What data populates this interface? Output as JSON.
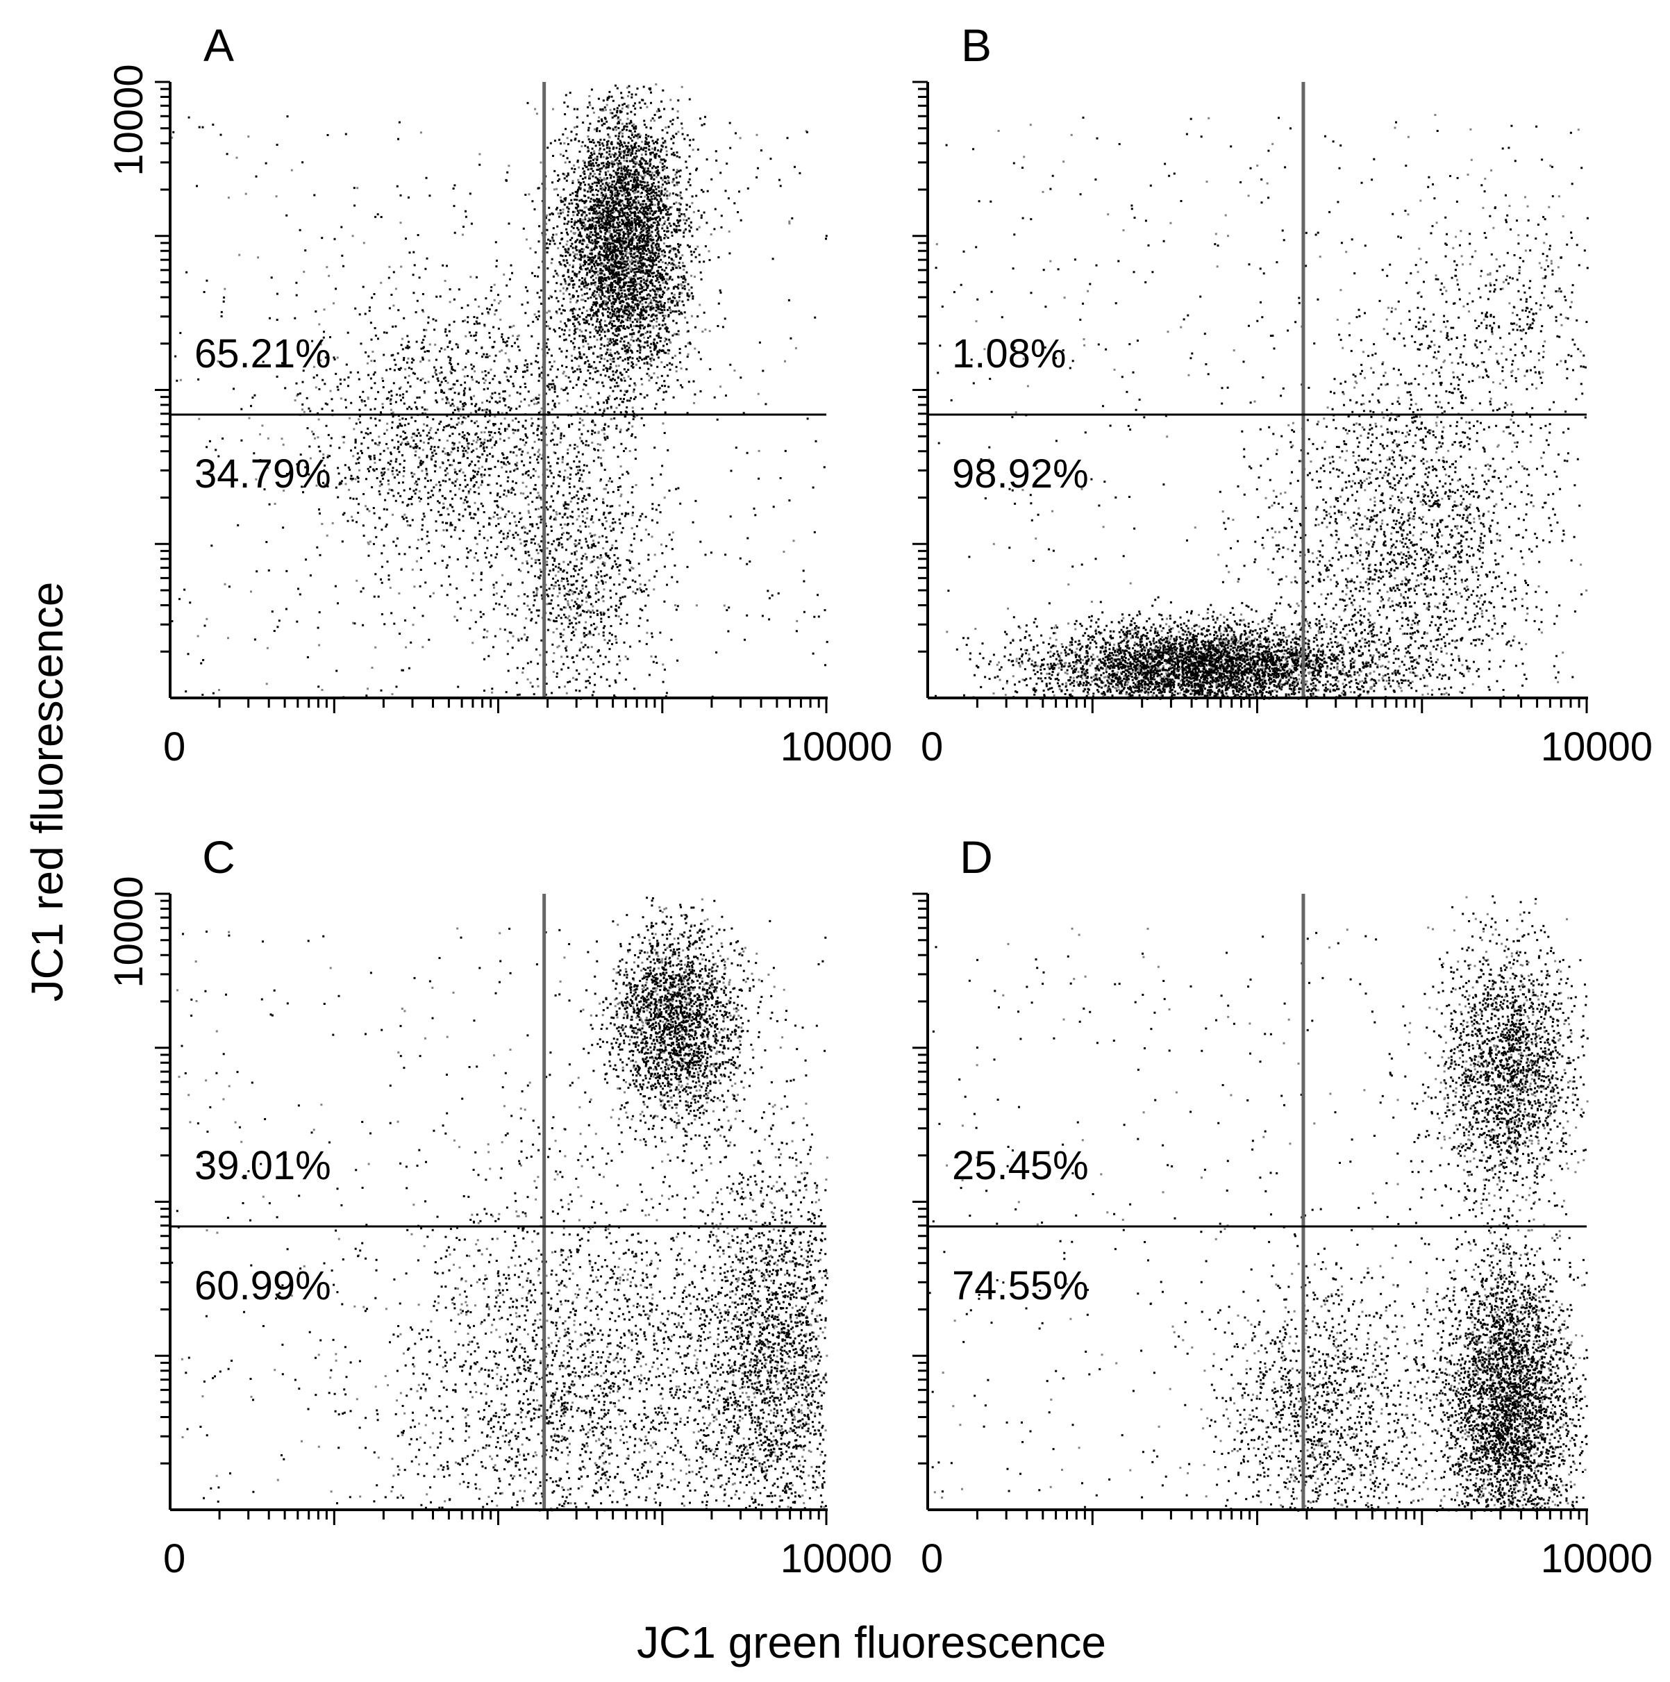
{
  "figure": {
    "ylabel": "JC1 red fluorescence",
    "xlabel": "JC1 green fluorescence",
    "colors": {
      "dot": "#000000",
      "dot_gray": "#808080",
      "axis": "#000000",
      "gate": "#666666"
    }
  },
  "chart_data": [
    {
      "type": "scatter",
      "panel": "A",
      "x_tick_labels": [
        "0",
        "10000"
      ],
      "y_tick_labels": [
        "10000"
      ],
      "xlim": [
        0,
        10000
      ],
      "ylim": [
        0,
        10000
      ],
      "x_scale": "log",
      "y_scale": "log",
      "grid": false,
      "quadrant_labels": {
        "upper": "65.21%",
        "lower": "34.79%"
      },
      "upper_fraction": 0.6521,
      "clusters": [
        {
          "cx": 0.69,
          "cy": 0.74,
          "sx": 0.05,
          "sy": 0.11,
          "w": 0.62
        },
        {
          "cx": 0.45,
          "cy": 0.42,
          "sx": 0.13,
          "sy": 0.12,
          "w": 0.26
        },
        {
          "cx": 0.62,
          "cy": 0.18,
          "sx": 0.06,
          "sy": 0.12,
          "w": 0.12
        }
      ]
    },
    {
      "type": "scatter",
      "panel": "B",
      "x_tick_labels": [
        "0",
        "10000"
      ],
      "y_tick_labels": [],
      "xlim": [
        0,
        10000
      ],
      "ylim": [
        0,
        10000
      ],
      "x_scale": "log",
      "y_scale": "log",
      "grid": false,
      "quadrant_labels": {
        "upper": "1.08%",
        "lower": "98.92%"
      },
      "upper_fraction": 0.0108,
      "clusters": [
        {
          "cx": 0.42,
          "cy": 0.05,
          "sx": 0.13,
          "sy": 0.035,
          "w": 0.66
        },
        {
          "cx": 0.73,
          "cy": 0.26,
          "sx": 0.1,
          "sy": 0.15,
          "w": 0.28
        },
        {
          "cx": 0.88,
          "cy": 0.62,
          "sx": 0.08,
          "sy": 0.1,
          "w": 0.06
        }
      ]
    },
    {
      "type": "scatter",
      "panel": "C",
      "x_tick_labels": [
        "0",
        "10000"
      ],
      "y_tick_labels": [
        "10000"
      ],
      "xlim": [
        0,
        10000
      ],
      "ylim": [
        0,
        10000
      ],
      "x_scale": "log",
      "y_scale": "log",
      "grid": false,
      "quadrant_labels": {
        "upper": "39.01%",
        "lower": "60.99%"
      },
      "upper_fraction": 0.3901,
      "clusters": [
        {
          "cx": 0.77,
          "cy": 0.79,
          "sx": 0.05,
          "sy": 0.08,
          "w": 0.32
        },
        {
          "cx": 0.92,
          "cy": 0.24,
          "sx": 0.06,
          "sy": 0.17,
          "w": 0.34
        },
        {
          "cx": 0.62,
          "cy": 0.22,
          "sx": 0.14,
          "sy": 0.17,
          "w": 0.34
        }
      ]
    },
    {
      "type": "scatter",
      "panel": "D",
      "x_tick_labels": [
        "0",
        "10000"
      ],
      "y_tick_labels": [],
      "xlim": [
        0,
        10000
      ],
      "ylim": [
        0,
        10000
      ],
      "x_scale": "log",
      "y_scale": "log",
      "grid": false,
      "quadrant_labels": {
        "upper": "25.45%",
        "lower": "74.55%"
      },
      "upper_fraction": 0.2545,
      "clusters": [
        {
          "cx": 0.88,
          "cy": 0.72,
          "sx": 0.05,
          "sy": 0.1,
          "w": 0.28
        },
        {
          "cx": 0.88,
          "cy": 0.17,
          "sx": 0.05,
          "sy": 0.12,
          "w": 0.52
        },
        {
          "cx": 0.6,
          "cy": 0.15,
          "sx": 0.08,
          "sy": 0.12,
          "w": 0.2
        }
      ]
    }
  ]
}
